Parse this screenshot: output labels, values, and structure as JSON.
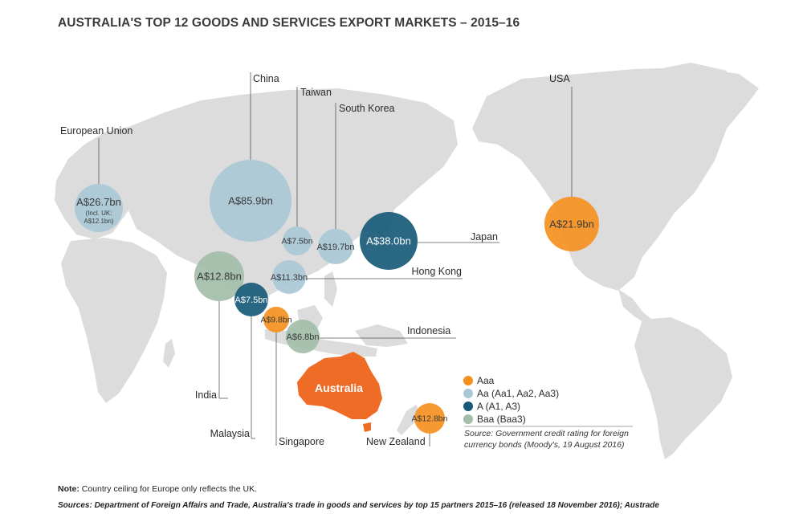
{
  "title": "AUSTRALIA'S TOP 12 GOODS AND SERVICES EXPORT MARKETS – 2015–16",
  "colors": {
    "land": "#dcdcdc",
    "aaa": "#f5901e",
    "aa": "#a9c8d6",
    "a": "#175a78",
    "baa": "#a3bda9",
    "australia": "#ee6c25",
    "leader": "#555555"
  },
  "markets": [
    {
      "name": "European Union",
      "value": "A$26.7bn",
      "sub1": "(Incl. UK:",
      "sub2": "A$12.1bn)",
      "rating": "aa"
    },
    {
      "name": "China",
      "value": "A$85.9bn",
      "rating": "aa"
    },
    {
      "name": "Taiwan",
      "value": "A$7.5bn",
      "rating": "aa"
    },
    {
      "name": "South Korea",
      "value": "A$19.7bn",
      "rating": "aa"
    },
    {
      "name": "Japan",
      "value": "A$38.0bn",
      "rating": "a"
    },
    {
      "name": "Hong Kong",
      "value": "A$11.3bn",
      "rating": "aa"
    },
    {
      "name": "India",
      "value": "A$12.8bn",
      "rating": "baa"
    },
    {
      "name": "Malaysia",
      "value": "A$7.5bn",
      "rating": "a"
    },
    {
      "name": "Singapore",
      "value": "A$9.8bn",
      "rating": "aaa"
    },
    {
      "name": "Indonesia",
      "value": "A$6.8bn",
      "rating": "baa"
    },
    {
      "name": "USA",
      "value": "A$21.9bn",
      "rating": "aaa"
    },
    {
      "name": "New Zealand",
      "value": "A$12.8bn",
      "rating": "aaa"
    }
  ],
  "australia_label": "Australia",
  "legend": {
    "items": [
      {
        "label": "Aaa",
        "rating": "aaa"
      },
      {
        "label": "Aa (Aa1, Aa2, Aa3)",
        "rating": "aa"
      },
      {
        "label": "A (A1, A3)",
        "rating": "a"
      },
      {
        "label": "Baa (Baa3)",
        "rating": "baa"
      }
    ],
    "source_line1": "Source: Government credit rating for foreign",
    "source_line2": "currency bonds (Moody's, 19 August 2016)"
  },
  "note_label": "Note:",
  "note_text": " Country ceiling for Europe only reflects the UK.",
  "sources": "Sources: Department of Foreign Affairs and Trade, Australia's trade in goods and services by top 15 partners 2015–16 (released 18 November 2016); Austrade"
}
